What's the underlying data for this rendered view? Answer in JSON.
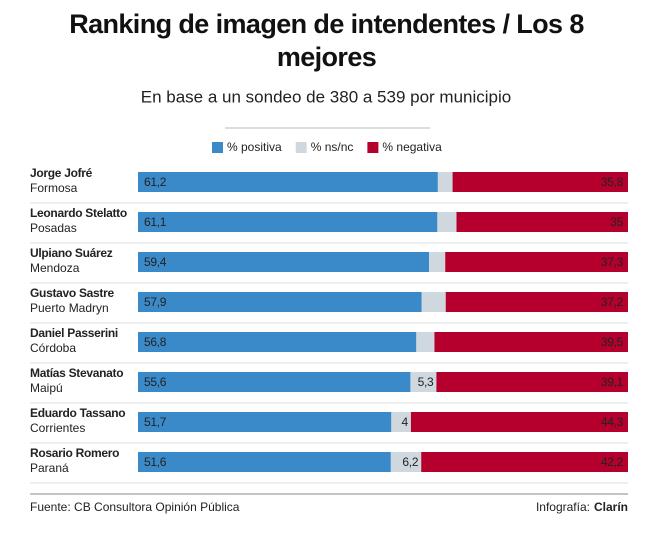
{
  "chart_data": {
    "type": "stacked-bar-horizontal",
    "title": "Ranking de imagen de intendentes / Los 8 mejores",
    "subtitle": "En base a un sondeo de 380 a 539 por municipio",
    "categories": [
      "Jorge Jofré",
      "Leonardo Stelatto",
      "Ulpiano Suárez",
      "Gustavo Sastre",
      "Daniel Passerini",
      "Matías Stevanato",
      "Eduardo Tassano",
      "Rosario Romero"
    ],
    "category_sublabels": [
      "Formosa",
      "Posadas",
      "Mendoza",
      "Puerto Madryn",
      "Córdoba",
      "Maipú",
      "Corrientes",
      "Paraná"
    ],
    "series": [
      {
        "name": "% positiva",
        "color": "#3a8ac9",
        "values": [
          61.2,
          61.1,
          59.4,
          57.9,
          56.8,
          55.6,
          51.7,
          51.6
        ],
        "value_labels": [
          "61,2",
          "61,1",
          "59,4",
          "57,9",
          "56,8",
          "55,6",
          "51,7",
          "51,6"
        ]
      },
      {
        "name": "% ns/nc",
        "color": "#cfd8de",
        "values": [
          3.0,
          3.9,
          3.3,
          4.9,
          3.7,
          5.3,
          4,
          6.2
        ],
        "value_labels": [
          null,
          null,
          null,
          null,
          null,
          "5,3",
          "4",
          "6,2"
        ]
      },
      {
        "name": "% negativa",
        "color": "#b5002e",
        "values": [
          35.8,
          35,
          37.3,
          37.2,
          39.5,
          39.1,
          44.3,
          42.2
        ],
        "value_labels": [
          "35,8",
          "35",
          "37,3",
          "37,2",
          "39,5",
          "39,1",
          "44,3",
          "42,2"
        ]
      }
    ],
    "xlim": [
      0,
      100
    ],
    "source": "Fuente: CB Consultora Opinión Pública",
    "credit_label": "Infografía:",
    "credit_brand": "Clarín"
  }
}
